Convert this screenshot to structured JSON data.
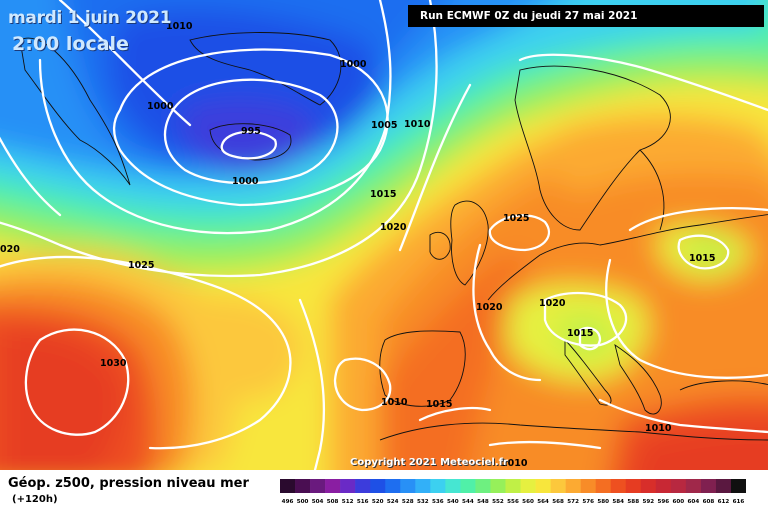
{
  "header": {
    "date": "mardi 1 juin 2021",
    "local_time": "2:00 locale",
    "run_info": "Run ECMWF 0Z du jeudi 27 mai 2021"
  },
  "footer": {
    "legend_title": "Géop. z500, pression niveau mer",
    "forecast_offset": "(+120h)",
    "copyright": "Copyright 2021 Meteociel.fr"
  },
  "colorbar": {
    "labels": [
      "496",
      "500",
      "504",
      "508",
      "512",
      "516",
      "520",
      "524",
      "528",
      "532",
      "536",
      "540",
      "544",
      "548",
      "552",
      "556",
      "560",
      "564",
      "568",
      "572",
      "576",
      "580",
      "584",
      "588",
      "592",
      "596",
      "600",
      "604",
      "608",
      "612",
      "616"
    ],
    "colors": [
      "#2a0a2e",
      "#4a0e52",
      "#6a1a7e",
      "#8a1ea2",
      "#6a2ac6",
      "#3c3cdc",
      "#1e50e6",
      "#1e6ef0",
      "#2890f6",
      "#32b0f8",
      "#3cd0f0",
      "#46e6d2",
      "#50f0a8",
      "#6ef080",
      "#96f05a",
      "#c0f046",
      "#e6f040",
      "#f8e63c",
      "#fcc83c",
      "#fcaa32",
      "#f88c28",
      "#f46e22",
      "#ee5020",
      "#e63c22",
      "#d82e2a",
      "#c82834",
      "#b82840",
      "#a0284a",
      "#802050",
      "#5a1840",
      "#101010"
    ]
  },
  "isobar_labels": [
    {
      "text": "1010",
      "id": "top-left"
    },
    {
      "text": "1000",
      "id": "greenland-n"
    },
    {
      "text": "1000",
      "id": "greenland-w"
    },
    {
      "text": "995",
      "id": "low-center"
    },
    {
      "text": "1000",
      "id": "low-s"
    },
    {
      "text": "1005",
      "id": "iceland-e"
    },
    {
      "text": "1010",
      "id": "norway-w"
    },
    {
      "text": "1015",
      "id": "north-atlantic"
    },
    {
      "text": "1020",
      "id": "ireland"
    },
    {
      "text": "1025",
      "id": "north-sea"
    },
    {
      "text": "1025",
      "id": "mid-atlantic"
    },
    {
      "text": "020",
      "id": "west-edge"
    },
    {
      "text": "1030",
      "id": "azores-high"
    },
    {
      "text": "1020",
      "id": "biscay"
    },
    {
      "text": "1020",
      "id": "alps"
    },
    {
      "text": "1015",
      "id": "italy"
    },
    {
      "text": "1015",
      "id": "russia"
    },
    {
      "text": "1010",
      "id": "iberia"
    },
    {
      "text": "1015",
      "id": "med-west"
    },
    {
      "text": "1010",
      "id": "greece"
    },
    {
      "text": "1010",
      "id": "bottom"
    }
  ]
}
